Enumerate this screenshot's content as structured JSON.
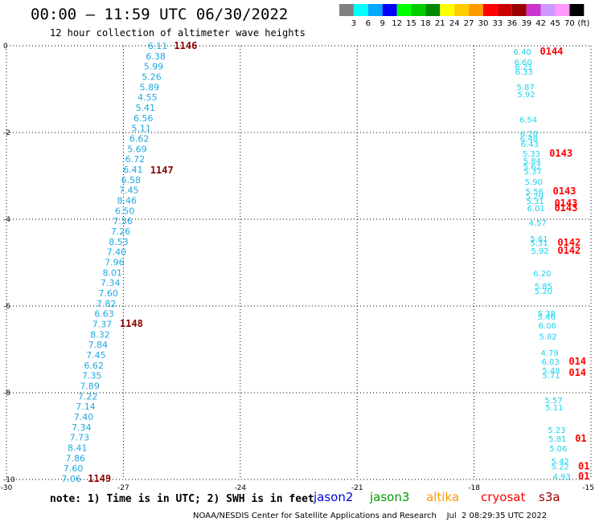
{
  "title": "00:00 — 11:59 UTC 06/30/2022",
  "subtitle": "12 hour collection of altimeter wave heights",
  "colorbar": {
    "colors": [
      "#808080",
      "#00ffff",
      "#00a8ff",
      "#0000ff",
      "#00ff00",
      "#00cc00",
      "#008800",
      "#ffff00",
      "#ffcc00",
      "#ff9900",
      "#ff0000",
      "#cc0000",
      "#990000",
      "#cc33cc",
      "#cc99ff",
      "#ff99ff",
      "#000000"
    ],
    "labels": [
      "3",
      "6",
      "9",
      "12",
      "15",
      "18",
      "21",
      "24",
      "27",
      "30",
      "33",
      "36",
      "39",
      "42",
      "45",
      "70"
    ],
    "unit": "(ft)"
  },
  "note": "note:  1) Time is in UTC; 2) SWH is in feet",
  "legend": [
    {
      "name": "jason2",
      "color": "#0000dd"
    },
    {
      "name": "jason3",
      "color": "#009900"
    },
    {
      "name": "altika",
      "color": "#ff9900"
    },
    {
      "name": "cryosat",
      "color": "#ff0000"
    },
    {
      "name": "s3a",
      "color": "#990000"
    }
  ],
  "footer": "NOAA/NESDIS Center for Satellite Applications and Research    Jul  2 08:29:35 UTC 2022",
  "chart_data": {
    "type": "scatter",
    "xlim": [
      -30,
      -15
    ],
    "ylim": [
      -10,
      0
    ],
    "xticks": [
      "-30",
      "-27",
      "-24",
      "-21",
      "-18",
      "-15"
    ],
    "yticks": [
      "0",
      "-2",
      "-4",
      "-6",
      "-8",
      "-10"
    ],
    "grid": true,
    "tracks": [
      {
        "color": "#1ea8e0",
        "start": [
          -26.37,
          0.0
        ],
        "end": [
          -28.59,
          -9.98
        ],
        "values": [
          6.11,
          6.38,
          5.99,
          5.26,
          5.89,
          4.55,
          5.41,
          6.56,
          5.11,
          6.62,
          5.69,
          6.72,
          6.41,
          6.58,
          7.45,
          8.46,
          6.5,
          7.36,
          7.26,
          8.53,
          7.4,
          7.96,
          8.01,
          7.34,
          7.6,
          7.82,
          6.63,
          7.37,
          8.32,
          7.84,
          7.45,
          6.62,
          7.35,
          7.89,
          7.22,
          7.14,
          7.4,
          7.34,
          7.73,
          8.41,
          7.86,
          7.6,
          7.06
        ]
      }
    ],
    "points": {
      "color": "#19d4ee",
      "items": [
        {
          "v": 6.4,
          "x": -16.99,
          "y": -0.13
        },
        {
          "v": 6.6,
          "x": -16.97,
          "y": -0.37
        },
        {
          "v": 6.21,
          "x": -16.95,
          "y": -0.48
        },
        {
          "v": 6.33,
          "x": -16.95,
          "y": -0.59
        },
        {
          "v": 5.87,
          "x": -16.91,
          "y": -0.94
        },
        {
          "v": 5.92,
          "x": -16.89,
          "y": -1.11
        },
        {
          "v": 6.54,
          "x": -16.84,
          "y": -1.69
        },
        {
          "v": 6.2,
          "x": -16.82,
          "y": -2.02
        },
        {
          "v": 6.48,
          "x": -16.82,
          "y": -2.13
        },
        {
          "v": 6.43,
          "x": -16.8,
          "y": -2.26
        },
        {
          "v": 5.33,
          "x": -16.76,
          "y": -2.48
        },
        {
          "v": 5.84,
          "x": -16.74,
          "y": -2.65
        },
        {
          "v": 5.62,
          "x": -16.74,
          "y": -2.78
        },
        {
          "v": 5.37,
          "x": -16.72,
          "y": -2.89
        },
        {
          "v": 5.9,
          "x": -16.7,
          "y": -3.13
        },
        {
          "v": 5.56,
          "x": -16.68,
          "y": -3.35
        },
        {
          "v": 5.29,
          "x": -16.68,
          "y": -3.46
        },
        {
          "v": 5.31,
          "x": -16.66,
          "y": -3.57
        },
        {
          "v": 6.01,
          "x": -16.64,
          "y": -3.74
        },
        {
          "v": 4.57,
          "x": -16.6,
          "y": -4.07
        },
        {
          "v": 5.61,
          "x": -16.56,
          "y": -4.44
        },
        {
          "v": 5.31,
          "x": -16.56,
          "y": -4.54
        },
        {
          "v": 5.92,
          "x": -16.54,
          "y": -4.72
        },
        {
          "v": 6.2,
          "x": -16.48,
          "y": -5.24
        },
        {
          "v": 5.85,
          "x": -16.45,
          "y": -5.54
        },
        {
          "v": 5.2,
          "x": -16.45,
          "y": -5.65
        },
        {
          "v": 5.38,
          "x": -16.37,
          "y": -6.17
        },
        {
          "v": 5.46,
          "x": -16.37,
          "y": -6.24
        },
        {
          "v": 6.06,
          "x": -16.35,
          "y": -6.44
        },
        {
          "v": 5.82,
          "x": -16.33,
          "y": -6.69
        },
        {
          "v": 4.79,
          "x": -16.29,
          "y": -7.07
        },
        {
          "v": 6.03,
          "x": -16.27,
          "y": -7.28
        },
        {
          "v": 5.48,
          "x": -16.25,
          "y": -7.48
        },
        {
          "v": 5.71,
          "x": -16.25,
          "y": -7.59
        },
        {
          "v": 5.57,
          "x": -16.19,
          "y": -8.17
        },
        {
          "v": 5.11,
          "x": -16.17,
          "y": -8.33
        },
        {
          "v": 5.23,
          "x": -16.11,
          "y": -8.85
        },
        {
          "v": 5.81,
          "x": -16.09,
          "y": -9.06
        },
        {
          "v": 5.06,
          "x": -16.07,
          "y": -9.28
        },
        {
          "v": 5.42,
          "x": -16.02,
          "y": -9.57
        },
        {
          "v": 5.22,
          "x": -16.02,
          "y": -9.69
        },
        {
          "v": 4.93,
          "x": -15.98,
          "y": -9.93
        }
      ]
    },
    "time_labels": [
      {
        "t": "1146",
        "x": -25.7,
        "y": 0.0,
        "color": "#8b0000"
      },
      {
        "t": "1147",
        "x": -26.31,
        "y": -2.87,
        "color": "#8b0000"
      },
      {
        "t": "1148",
        "x": -27.09,
        "y": -6.41,
        "color": "#8b0000"
      },
      {
        "t": "1149",
        "x": -27.91,
        "y": -9.98,
        "color": "#8b0000"
      },
      {
        "t": "0144",
        "x": -16.31,
        "y": -0.13,
        "color": "#ff0000"
      },
      {
        "t": "0143",
        "x": -16.07,
        "y": -2.48,
        "color": "#ff0000"
      },
      {
        "t": "0143",
        "x": -15.98,
        "y": -3.35,
        "color": "#ff0000"
      },
      {
        "t": "0143",
        "x": -15.94,
        "y": -3.63,
        "color": "#ff0000"
      },
      {
        "t": "0143",
        "x": -15.94,
        "y": -3.74,
        "color": "#ff0000"
      },
      {
        "t": "0142",
        "x": -15.86,
        "y": -4.54,
        "color": "#ff0000"
      },
      {
        "t": "0142",
        "x": -15.86,
        "y": -4.72,
        "color": "#ff0000"
      },
      {
        "t": "014",
        "x": -15.57,
        "y": -7.28,
        "color": "#ff0000"
      },
      {
        "t": "014",
        "x": -15.57,
        "y": -7.54,
        "color": "#ff0000"
      },
      {
        "t": "01",
        "x": -15.41,
        "y": -9.06,
        "color": "#ff0000"
      },
      {
        "t": "01",
        "x": -15.33,
        "y": -9.69,
        "color": "#ff0000"
      },
      {
        "t": "01",
        "x": -15.33,
        "y": -9.93,
        "color": "#ff0000"
      }
    ]
  }
}
